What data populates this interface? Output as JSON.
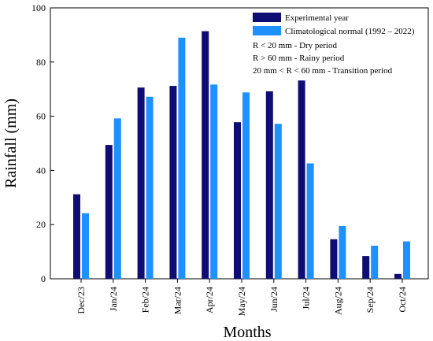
{
  "chart_data": {
    "type": "bar",
    "categories": [
      "Dec/23",
      "Jan/24",
      "Feb/24",
      "Mar/24",
      "Apr/24",
      "May/24",
      "Jun/24",
      "Jul/24",
      "Aug/24",
      "Sep/24",
      "Oct/24"
    ],
    "series": [
      {
        "name": "Experimental year",
        "color": "#0d0d73",
        "values": [
          31.2,
          49.4,
          70.6,
          71.2,
          91.4,
          57.8,
          69.2,
          73.2,
          14.6,
          8.4,
          1.8
        ]
      },
      {
        "name": "Climatological normal (1992 – 2022)",
        "color": "#1e90ff",
        "values": [
          24.2,
          59.2,
          67.2,
          89.0,
          71.7,
          68.8,
          57.2,
          42.6,
          19.5,
          12.2,
          13.8
        ]
      }
    ],
    "xlabel": "Months",
    "ylabel": "Rainfall (mm)",
    "ylim": [
      0,
      100
    ],
    "yticks": [
      0,
      20,
      40,
      60,
      80,
      100
    ],
    "grid": false,
    "legend_position": "top-right",
    "notes": [
      "R < 20 mm - Dry period",
      "R > 60 mm - Rainy period",
      "20 mm < R < 60 mm - Transition period"
    ]
  }
}
